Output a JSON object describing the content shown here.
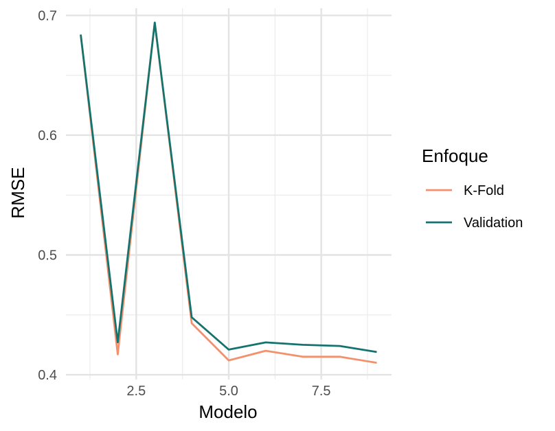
{
  "chart_data": {
    "type": "line",
    "xlabel": "Modelo",
    "ylabel": "RMSE",
    "xlim": [
      0.6,
      9.4
    ],
    "ylim": [
      0.396,
      0.706
    ],
    "x_ticks": [
      2.5,
      5.0,
      7.5
    ],
    "x_tick_labels": [
      "2.5",
      "5.0",
      "7.5"
    ],
    "x_minor_ticks": [
      1.25,
      3.75,
      6.25,
      8.75
    ],
    "y_ticks": [
      0.4,
      0.5,
      0.6,
      0.7
    ],
    "y_tick_labels": [
      "0.4",
      "0.5",
      "0.6",
      "0.7"
    ],
    "y_minor_ticks": [
      0.45,
      0.55,
      0.65
    ],
    "grid": true,
    "legend": {
      "title": "Enfoque",
      "position": "right"
    },
    "x": [
      1,
      2,
      3,
      4,
      5,
      6,
      7,
      8,
      9
    ],
    "series": [
      {
        "name": "K-Fold",
        "color": "#F4906C",
        "values": [
          0.684,
          0.417,
          0.694,
          0.443,
          0.412,
          0.42,
          0.415,
          0.415,
          0.41
        ]
      },
      {
        "name": "Validation",
        "color": "#15736F",
        "values": [
          0.684,
          0.427,
          0.694,
          0.448,
          0.421,
          0.427,
          0.425,
          0.424,
          0.419
        ]
      }
    ]
  }
}
